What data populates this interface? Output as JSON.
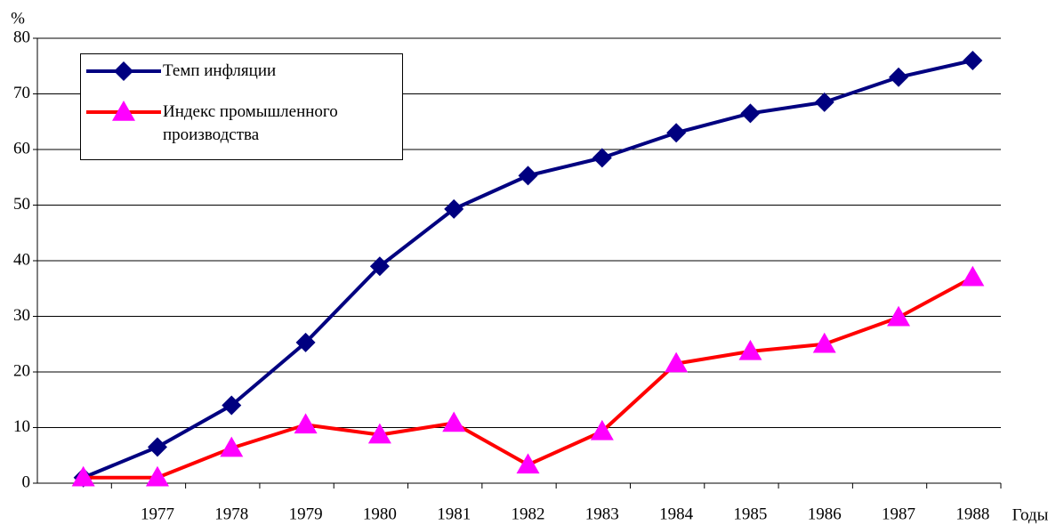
{
  "chart_data": {
    "type": "line",
    "ylabel": "%",
    "xlabel": "Годы",
    "categories": [
      null,
      "1977",
      "1978",
      "1979",
      "1980",
      "1981",
      "1982",
      "1983",
      "1984",
      "1985",
      "1986",
      "1987",
      "1988"
    ],
    "series": [
      {
        "name": "Темп инфляции",
        "color": "#000080",
        "marker_color": "#000080",
        "marker": "diamond",
        "values": [
          1,
          6.5,
          14,
          25.3,
          39,
          49.3,
          55.3,
          58.5,
          63,
          66.5,
          68.5,
          73,
          76
        ]
      },
      {
        "name": "Индекс промышленного производства",
        "color": "#ff0000",
        "marker_color": "#ff00ff",
        "marker": "triangle",
        "values": [
          1,
          1,
          6.3,
          10.5,
          8.7,
          10.8,
          3.3,
          9.3,
          21.5,
          23.7,
          25,
          29.8,
          37
        ]
      }
    ],
    "ylim": [
      0,
      80
    ],
    "yticks": [
      0,
      10,
      20,
      30,
      40,
      50,
      60,
      70,
      80
    ],
    "grid": true,
    "legend": "upper left"
  }
}
